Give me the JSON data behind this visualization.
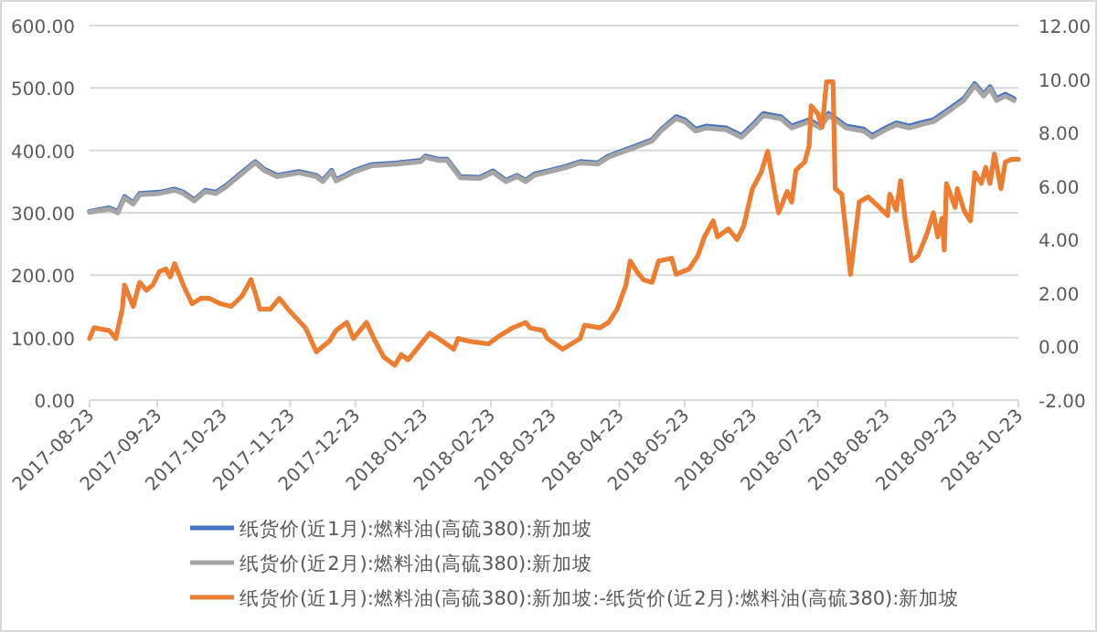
{
  "chart_data": {
    "type": "line",
    "grid": "y",
    "legend": "bottom",
    "line_style": "solid",
    "marker": "none",
    "xlim": [
      "2017-08-23",
      "2018-10-23"
    ],
    "xticks": [
      "2017-08-23",
      "2017-09-23",
      "2017-10-23",
      "2017-11-23",
      "2017-12-23",
      "2018-01-23",
      "2018-02-23",
      "2018-03-23",
      "2018-04-23",
      "2018-05-23",
      "2018-06-23",
      "2018-07-23",
      "2018-08-23",
      "2018-09-23",
      "2018-10-23"
    ],
    "ylim": [
      0,
      600
    ],
    "yticks": [
      {
        "value": 0,
        "label": "0.00"
      },
      {
        "value": 100,
        "label": "100.00"
      },
      {
        "value": 200,
        "label": "200.00"
      },
      {
        "value": 300,
        "label": "300.00"
      },
      {
        "value": 400,
        "label": "400.00"
      },
      {
        "value": 500,
        "label": "500.00"
      },
      {
        "value": 600,
        "label": "600.00"
      }
    ],
    "y2lim": [
      -2,
      12
    ],
    "y2ticks": [
      {
        "value": -2,
        "label": "-2.00"
      },
      {
        "value": 0,
        "label": "0.00"
      },
      {
        "value": 2,
        "label": "2.00"
      },
      {
        "value": 4,
        "label": "4.00"
      },
      {
        "value": 6,
        "label": "6.00"
      },
      {
        "value": 8,
        "label": "8.00"
      },
      {
        "value": 10,
        "label": "10.00"
      },
      {
        "value": 12,
        "label": "12.00"
      }
    ],
    "x": [
      "2017-08-23",
      "2017-09-01",
      "2017-09-05",
      "2017-09-08",
      "2017-09-12",
      "2017-09-15",
      "2017-09-24",
      "2017-10-01",
      "2017-10-05",
      "2017-10-10",
      "2017-10-15",
      "2017-10-20",
      "2017-10-24",
      "2017-11-01",
      "2017-11-07",
      "2017-11-11",
      "2017-11-17",
      "2017-11-27",
      "2017-12-05",
      "2017-12-08",
      "2017-12-12",
      "2017-12-14",
      "2017-12-22",
      "2017-12-30",
      "2018-01-11",
      "2018-01-22",
      "2018-01-24",
      "2018-01-30",
      "2018-02-03",
      "2018-02-09",
      "2018-02-18",
      "2018-02-24",
      "2018-03-02",
      "2018-03-07",
      "2018-03-11",
      "2018-03-15",
      "2018-03-21",
      "2018-03-30",
      "2018-04-05",
      "2018-04-13",
      "2018-04-18",
      "2018-04-24",
      "2018-05-02",
      "2018-05-08",
      "2018-05-12",
      "2018-05-19",
      "2018-05-23",
      "2018-05-28",
      "2018-06-02",
      "2018-06-11",
      "2018-06-18",
      "2018-06-24",
      "2018-06-28",
      "2018-07-06",
      "2018-07-11",
      "2018-07-19",
      "2018-07-24",
      "2018-07-28",
      "2018-08-01",
      "2018-08-05",
      "2018-08-13",
      "2018-08-17",
      "2018-08-22",
      "2018-08-28",
      "2018-09-03",
      "2018-09-08",
      "2018-09-14",
      "2018-09-22",
      "2018-09-28",
      "2018-10-03",
      "2018-10-07",
      "2018-10-10",
      "2018-10-13",
      "2018-10-17",
      "2018-10-21"
    ],
    "series": [
      {
        "name": "纸货价(近1月):燃料油(高硫380):新加坡",
        "color": "#4472c4",
        "values": [
          302,
          308,
          302,
          326,
          316,
          331,
          333,
          338,
          333,
          321,
          336,
          333,
          342,
          365,
          382,
          370,
          360,
          366,
          360,
          352,
          368,
          353,
          367,
          377,
          380,
          384,
          391,
          386,
          386,
          358,
          357,
          367,
          352,
          360,
          352,
          362,
          367,
          375,
          382,
          380,
          391,
          399,
          409,
          417,
          433,
          454,
          449,
          434,
          439,
          436,
          424,
          444,
          459,
          454,
          439,
          449,
          439,
          459,
          449,
          439,
          434,
          424,
          434,
          444,
          439,
          444,
          449,
          468,
          483,
          507,
          490,
          502,
          483,
          490,
          483
        ]
      },
      {
        "name": "纸货价(近2月):燃料油(高硫380):新加坡",
        "color": "#a5a5a5",
        "values": [
          301,
          306,
          300,
          324,
          314,
          329,
          331,
          336,
          331,
          319,
          334,
          331,
          340,
          363,
          380,
          368,
          358,
          364,
          358,
          350,
          366,
          351,
          365,
          375,
          378,
          382,
          389,
          384,
          384,
          356,
          355,
          365,
          350,
          358,
          350,
          360,
          365,
          373,
          380,
          378,
          389,
          397,
          407,
          415,
          431,
          451,
          446,
          431,
          436,
          433,
          421,
          441,
          456,
          451,
          436,
          446,
          436,
          456,
          446,
          436,
          431,
          421,
          431,
          441,
          436,
          441,
          446,
          465,
          480,
          504,
          487,
          499,
          480,
          487,
          480
        ]
      },
      {
        "name": "纸货价(近1月):燃料油(高硫380):新加坡:-纸货价(近2月):燃料油(高硫380):新加坡",
        "color": "#ed7d31",
        "axis": "y2",
        "x": [
          "2017-08-23",
          "2017-08-25",
          "2017-09-01",
          "2017-09-04",
          "2017-09-07",
          "2017-09-08",
          "2017-09-11",
          "2017-09-12",
          "2017-09-15",
          "2017-09-18",
          "2017-09-21",
          "2017-09-24",
          "2017-09-27",
          "2017-09-29",
          "2017-10-01",
          "2017-10-05",
          "2017-10-09",
          "2017-10-13",
          "2017-10-17",
          "2017-10-22",
          "2017-10-27",
          "2017-11-01",
          "2017-11-05",
          "2017-11-07",
          "2017-11-09",
          "2017-11-14",
          "2017-11-18",
          "2017-11-22",
          "2017-11-30",
          "2017-12-05",
          "2017-12-11",
          "2017-12-14",
          "2017-12-19",
          "2017-12-22",
          "2017-12-28",
          "2018-01-01",
          "2018-01-05",
          "2018-01-10",
          "2018-01-13",
          "2018-01-16",
          "2018-01-22",
          "2018-01-26",
          "2018-01-30",
          "2018-02-06",
          "2018-02-08",
          "2018-02-13",
          "2018-02-22",
          "2018-02-27",
          "2018-03-05",
          "2018-03-11",
          "2018-03-13",
          "2018-03-19",
          "2018-03-21",
          "2018-03-28",
          "2018-04-05",
          "2018-04-07",
          "2018-04-14",
          "2018-04-18",
          "2018-04-22",
          "2018-04-26",
          "2018-04-28",
          "2018-05-01",
          "2018-05-04",
          "2018-05-08",
          "2018-05-11",
          "2018-05-17",
          "2018-05-19",
          "2018-05-25",
          "2018-05-29",
          "2018-06-01",
          "2018-06-05",
          "2018-06-07",
          "2018-06-12",
          "2018-06-16",
          "2018-06-19",
          "2018-06-23",
          "2018-06-27",
          "2018-06-30",
          "2018-07-03",
          "2018-07-05",
          "2018-07-09",
          "2018-07-11",
          "2018-07-13",
          "2018-07-17",
          "2018-07-19",
          "2018-07-20",
          "2018-07-23",
          "2018-07-25",
          "2018-07-27",
          "2018-07-30",
          "2018-07-31",
          "2018-08-03",
          "2018-08-07",
          "2018-08-11",
          "2018-08-15",
          "2018-08-19",
          "2018-08-24",
          "2018-08-25",
          "2018-08-28",
          "2018-08-30",
          "2018-09-01",
          "2018-09-04",
          "2018-09-07",
          "2018-09-11",
          "2018-09-14",
          "2018-09-16",
          "2018-09-18",
          "2018-09-19",
          "2018-09-20",
          "2018-09-24",
          "2018-09-25",
          "2018-09-28",
          "2018-10-01",
          "2018-10-03",
          "2018-10-06",
          "2018-10-08",
          "2018-10-10",
          "2018-10-12",
          "2018-10-15",
          "2018-10-17",
          "2018-10-20",
          "2018-10-23"
        ],
        "values": [
          0.3,
          0.7,
          0.6,
          0.3,
          1.4,
          2.3,
          1.7,
          1.5,
          2.4,
          2.1,
          2.3,
          2.8,
          2.9,
          2.6,
          3.1,
          2.3,
          1.6,
          1.8,
          1.8,
          1.6,
          1.5,
          1.9,
          2.5,
          2.0,
          1.4,
          1.4,
          1.8,
          1.4,
          0.7,
          -0.2,
          0.2,
          0.6,
          0.9,
          0.3,
          0.9,
          0.2,
          -0.4,
          -0.7,
          -0.3,
          -0.5,
          0.1,
          0.5,
          0.3,
          -0.1,
          0.3,
          0.2,
          0.1,
          0.4,
          0.7,
          0.9,
          0.7,
          0.6,
          0.3,
          -0.1,
          0.3,
          0.8,
          0.7,
          0.9,
          1.4,
          2.3,
          3.2,
          2.8,
          2.5,
          2.4,
          3.2,
          3.3,
          2.7,
          2.9,
          3.4,
          4.1,
          4.7,
          4.1,
          4.4,
          4.0,
          4.5,
          5.9,
          6.5,
          7.3,
          5.9,
          5.0,
          5.8,
          5.4,
          6.6,
          6.9,
          7.5,
          9.0,
          8.7,
          8.2,
          9.9,
          9.9,
          5.9,
          5.7,
          2.7,
          5.4,
          5.6,
          5.3,
          4.9,
          5.7,
          5.1,
          6.2,
          4.8,
          3.2,
          3.4,
          4.2,
          5.0,
          4.1,
          4.8,
          3.6,
          6.1,
          5.2,
          5.9,
          5.1,
          4.7,
          6.5,
          6.1,
          6.7,
          6.1,
          7.2,
          5.9,
          6.9,
          7.0,
          7.0
        ]
      }
    ]
  }
}
